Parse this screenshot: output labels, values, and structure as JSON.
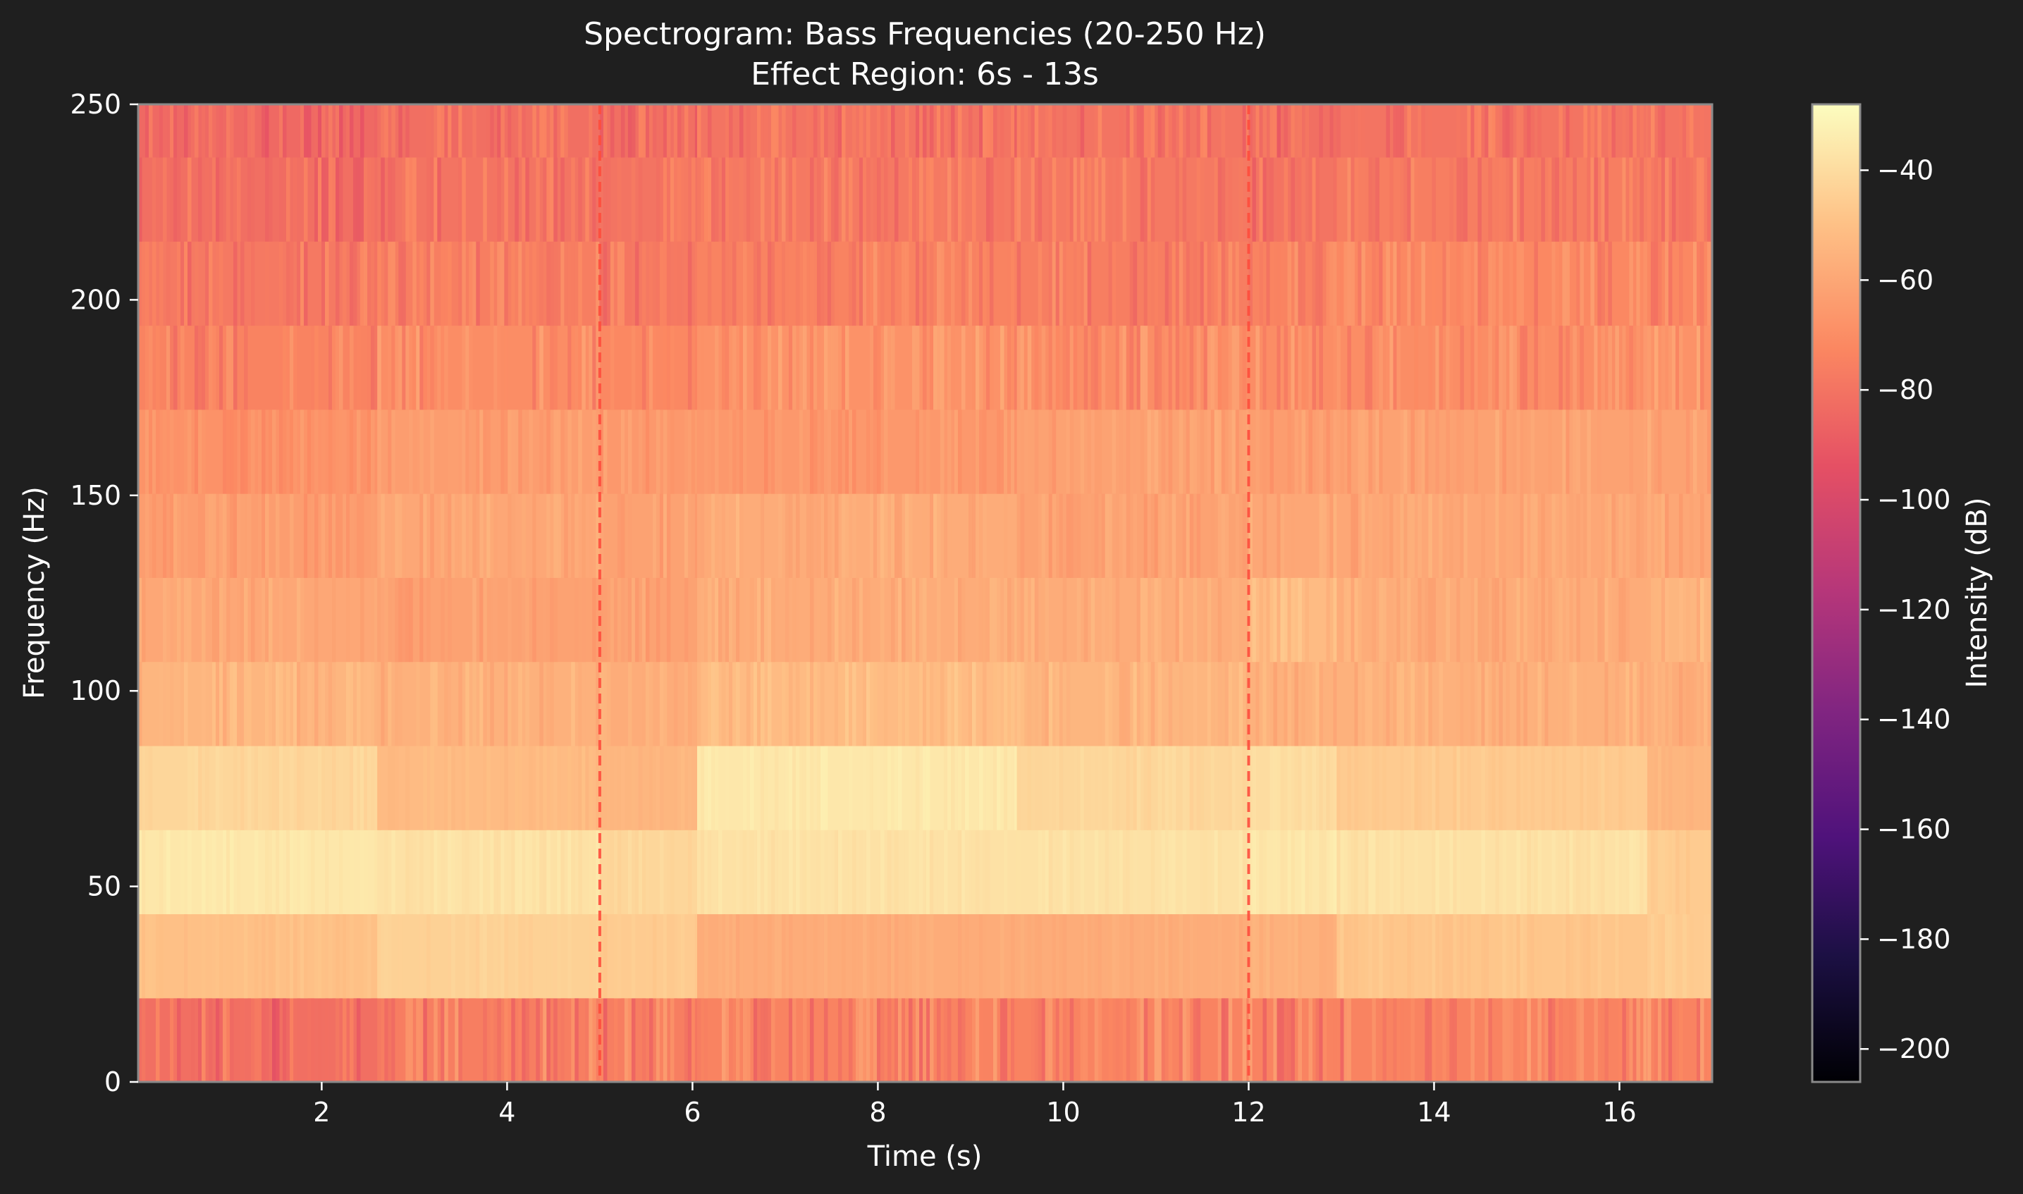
{
  "chart_data": {
    "type": "heatmap",
    "title": "Spectrogram: Bass Frequencies (20-250 Hz)",
    "subtitle": "Effect Region: 6s - 13s",
    "xlabel": "Time (s)",
    "ylabel": "Frequency (Hz)",
    "xlim": [
      0.02,
      17.0
    ],
    "ylim": [
      0,
      250
    ],
    "x_ticks": [
      2,
      4,
      6,
      8,
      10,
      12,
      14,
      16
    ],
    "y_ticks": [
      0,
      50,
      100,
      150,
      200,
      250
    ],
    "freq_bins": [
      {
        "lo": 0,
        "hi": 21.5
      },
      {
        "lo": 21.5,
        "hi": 43
      },
      {
        "lo": 43,
        "hi": 64.5
      },
      {
        "lo": 64.5,
        "hi": 86
      },
      {
        "lo": 86,
        "hi": 107.5
      },
      {
        "lo": 107.5,
        "hi": 129
      },
      {
        "lo": 129,
        "hi": 150.5
      },
      {
        "lo": 150.5,
        "hi": 172
      },
      {
        "lo": 172,
        "hi": 193.5
      },
      {
        "lo": 193.5,
        "hi": 215
      },
      {
        "lo": 215,
        "hi": 236.5
      },
      {
        "lo": 236.5,
        "hi": 250
      }
    ],
    "time_segments": [
      {
        "t0": 0.02,
        "t1": 2.6,
        "db": [
          -82,
          -50,
          -36,
          -42,
          -54,
          -60,
          -64,
          -68,
          -74,
          -78,
          -82,
          -84
        ]
      },
      {
        "t0": 2.6,
        "t1": 5.0,
        "db": [
          -76,
          -44,
          -38,
          -52,
          -56,
          -62,
          -60,
          -64,
          -70,
          -76,
          -80,
          -82
        ]
      },
      {
        "t0": 5.0,
        "t1": 6.05,
        "db": [
          -76,
          -46,
          -42,
          -54,
          -58,
          -62,
          -62,
          -66,
          -72,
          -78,
          -80,
          -82
        ]
      },
      {
        "t0": 6.05,
        "t1": 9.5,
        "db": [
          -74,
          -58,
          -38,
          -36,
          -52,
          -58,
          -58,
          -66,
          -68,
          -74,
          -78,
          -80
        ]
      },
      {
        "t0": 9.5,
        "t1": 12.0,
        "db": [
          -74,
          -58,
          -38,
          -42,
          -54,
          -58,
          -62,
          -62,
          -70,
          -76,
          -78,
          -80
        ]
      },
      {
        "t0": 12.0,
        "t1": 12.95,
        "db": [
          -74,
          -56,
          -36,
          -40,
          -56,
          -52,
          -60,
          -64,
          -70,
          -74,
          -80,
          -82
        ]
      },
      {
        "t0": 12.95,
        "t1": 16.3,
        "db": [
          -74,
          -48,
          -38,
          -46,
          -56,
          -58,
          -60,
          -62,
          -70,
          -72,
          -76,
          -80
        ]
      },
      {
        "t0": 16.3,
        "t1": 17.0,
        "db": [
          -74,
          -46,
          -46,
          -54,
          -58,
          -54,
          -60,
          -62,
          -68,
          -72,
          -78,
          -80
        ]
      }
    ],
    "markers": [
      {
        "x": 5.0,
        "style": "dashed",
        "color": "#ff4d3d"
      },
      {
        "x": 12.0,
        "style": "dashed",
        "color": "#ff4d3d"
      }
    ],
    "colorbar": {
      "label": "Intensity (dB)",
      "colormap": "magma",
      "range": [
        -206,
        -28
      ],
      "ticks": [
        -40,
        -60,
        -80,
        -100,
        -120,
        -140,
        -160,
        -180,
        -200
      ],
      "tick_labels": [
        "−40",
        "−60",
        "−80",
        "−100",
        "−120",
        "−140",
        "−160",
        "−180",
        "−200"
      ]
    }
  }
}
